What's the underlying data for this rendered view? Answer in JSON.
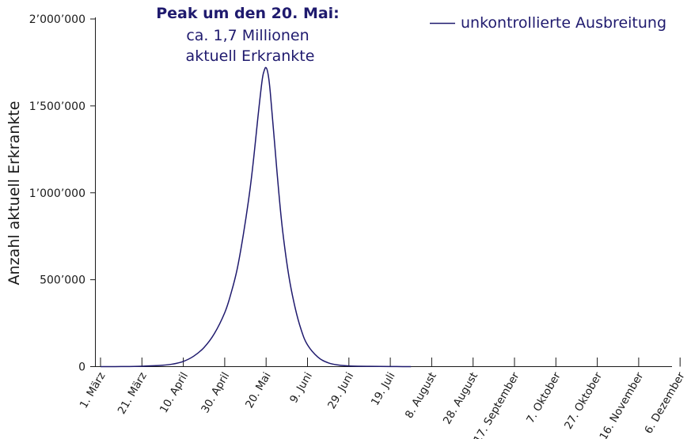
{
  "chart_data": {
    "type": "line",
    "xlabel": "",
    "ylabel": "Anzahl aktuell Erkrankte",
    "ylim": [
      0,
      2000000
    ],
    "y_ticks": [
      {
        "value": 0,
        "label": "0"
      },
      {
        "value": 500000,
        "label": "500’000"
      },
      {
        "value": 1000000,
        "label": "1’000’000"
      },
      {
        "value": 1500000,
        "label": "1’500’000"
      },
      {
        "value": 2000000,
        "label": "2’000’000"
      }
    ],
    "x_ticks": [
      "1. März",
      "21. März",
      "10. April",
      "30. April",
      "20. Mai",
      "9. Juni",
      "29. Juni",
      "19. Juli",
      "8. August",
      "28. August",
      "17. September",
      "7. Oktober",
      "27. Oktober",
      "16. November",
      "6. Dezember"
    ],
    "x_tick_days_since_start": 20,
    "grid": false,
    "legend_position": "top-right",
    "colors": {
      "series": "#1f1a6e",
      "axis": "#1a1a1a"
    },
    "series": [
      {
        "name": "unkontrollierte Ausbreitung",
        "x": [
          "1. März",
          "11. März",
          "21. März",
          "31. März",
          "5. April",
          "10. April",
          "15. April",
          "20. April",
          "25. April",
          "30. April",
          "3. Mai",
          "6. Mai",
          "9. Mai",
          "12. Mai",
          "14. Mai",
          "16. Mai",
          "18. Mai",
          "19. Mai",
          "20. Mai",
          "21. Mai",
          "22. Mai",
          "24. Mai",
          "26. Mai",
          "28. Mai",
          "31. Mai",
          "3. Juni",
          "6. Juni",
          "9. Juni",
          "14. Juni",
          "19. Juni",
          "24. Juni",
          "29. Juni",
          "9. Juli",
          "19. Juli",
          "29. Juli"
        ],
        "values": [
          0,
          500,
          2500,
          8000,
          15000,
          30000,
          60000,
          110000,
          190000,
          310000,
          420000,
          560000,
          760000,
          1000000,
          1200000,
          1430000,
          1640000,
          1700000,
          1720000,
          1680000,
          1580000,
          1300000,
          1020000,
          780000,
          520000,
          340000,
          210000,
          125000,
          55000,
          22000,
          9000,
          4000,
          1500,
          500,
          0
        ]
      }
    ],
    "annotation": {
      "title": "Peak um den 20. Mai:",
      "line1": "ca. 1,7 Millionen",
      "line2": "aktuell Erkrankte"
    }
  }
}
